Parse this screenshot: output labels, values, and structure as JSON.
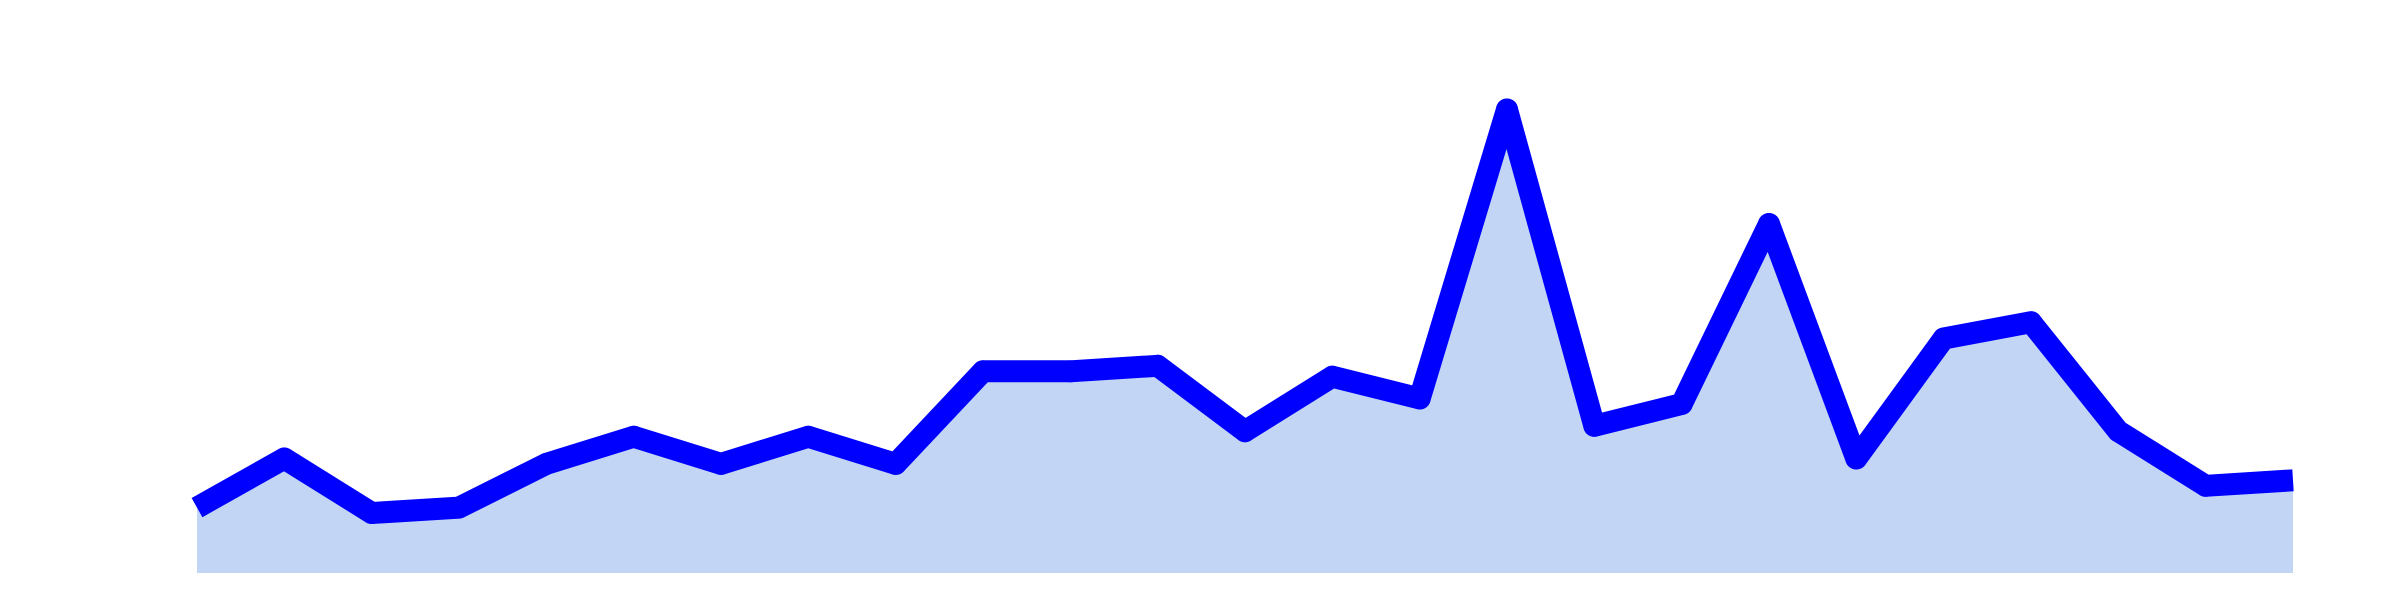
{
  "chart_data": {
    "type": "area",
    "title": "",
    "xlabel": "",
    "ylabel": "",
    "grid": false,
    "legend": "none",
    "x": [
      0,
      1,
      2,
      3,
      4,
      5,
      6,
      7,
      8,
      9,
      10,
      11,
      12,
      13,
      14,
      15,
      16,
      17,
      18,
      19,
      20,
      21,
      22,
      23,
      24
    ],
    "ylim": [
      0,
      95
    ],
    "series": [
      {
        "name": "",
        "color": "#0000ff",
        "fill": "#c2d5f5",
        "values": [
          12,
          21,
          11,
          12,
          20,
          25,
          20,
          25,
          20,
          37,
          37,
          38,
          26,
          36,
          32,
          85,
          27,
          31,
          64,
          21,
          43,
          46,
          26,
          16,
          17
        ]
      }
    ]
  }
}
